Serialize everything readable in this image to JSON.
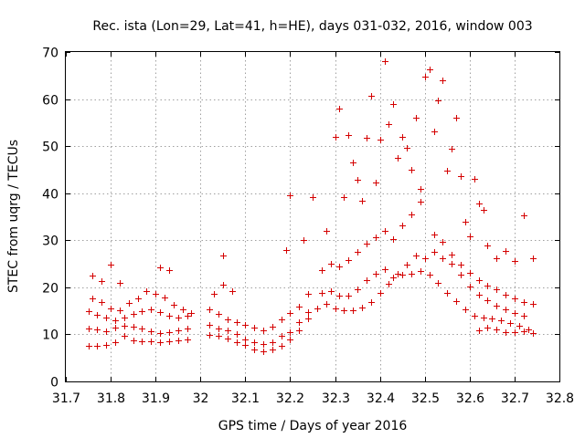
{
  "chart_data": {
    "type": "scatter",
    "title": "Rec. ista (Lon=29, Lat=41, h=HE), days 031-032, 2016, window 003",
    "xlabel": "GPS time / Days of year 2016",
    "ylabel": "STEC from uqrg / TECUs",
    "xlim": [
      31.7,
      32.8
    ],
    "ylim": [
      0,
      70
    ],
    "xticks": [
      "31.7",
      "31.8",
      "31.9",
      "32",
      "32.1",
      "32.2",
      "32.3",
      "32.4",
      "32.5",
      "32.6",
      "32.7",
      "32.8"
    ],
    "yticks": [
      "0",
      "10",
      "20",
      "30",
      "40",
      "50",
      "60",
      "70"
    ],
    "grid": true,
    "marker": "+",
    "color": "#d40000",
    "series": [
      {
        "values": [
          [
            31.75,
            7.5
          ],
          [
            31.77,
            7.6
          ],
          [
            31.79,
            7.8
          ],
          [
            31.81,
            8.4
          ],
          [
            31.83,
            9.6
          ],
          [
            31.85,
            8.8
          ],
          [
            31.87,
            8.5
          ],
          [
            31.89,
            8.5
          ],
          [
            31.91,
            8.4
          ],
          [
            31.93,
            8.6
          ],
          [
            31.95,
            8.8
          ],
          [
            31.97,
            8.9
          ],
          [
            31.75,
            11.2
          ],
          [
            31.77,
            11.0
          ],
          [
            31.79,
            10.6
          ],
          [
            31.81,
            11.4
          ],
          [
            31.83,
            11.9
          ],
          [
            31.85,
            11.6
          ],
          [
            31.87,
            11.2
          ],
          [
            31.89,
            10.7
          ],
          [
            31.91,
            10.3
          ],
          [
            31.93,
            10.4
          ],
          [
            31.95,
            10.8
          ],
          [
            31.97,
            11.3
          ],
          [
            31.75,
            15.0
          ],
          [
            31.77,
            14.2
          ],
          [
            31.79,
            13.6
          ],
          [
            31.81,
            13.0
          ],
          [
            31.83,
            13.6
          ],
          [
            31.85,
            14.3
          ],
          [
            31.87,
            15.0
          ],
          [
            31.89,
            15.3
          ],
          [
            31.91,
            14.8
          ],
          [
            31.93,
            14.0
          ],
          [
            31.95,
            13.6
          ],
          [
            31.97,
            13.9
          ],
          [
            31.76,
            17.7
          ],
          [
            31.78,
            16.8
          ],
          [
            31.8,
            15.6
          ],
          [
            31.82,
            15.1
          ],
          [
            31.84,
            16.6
          ],
          [
            31.86,
            17.6
          ],
          [
            31.88,
            19.2
          ],
          [
            31.9,
            18.7
          ],
          [
            31.92,
            17.9
          ],
          [
            31.94,
            16.3
          ],
          [
            31.96,
            15.3
          ],
          [
            31.98,
            14.6
          ],
          [
            31.76,
            22.5
          ],
          [
            31.78,
            21.3
          ],
          [
            31.8,
            24.8
          ],
          [
            31.82,
            20.9
          ],
          [
            31.91,
            24.3
          ],
          [
            31.93,
            23.6
          ],
          [
            32.02,
            9.8
          ],
          [
            32.04,
            9.6
          ],
          [
            32.06,
            9.1
          ],
          [
            32.08,
            8.3
          ],
          [
            32.1,
            7.8
          ],
          [
            32.12,
            6.7
          ],
          [
            32.14,
            6.4
          ],
          [
            32.16,
            6.7
          ],
          [
            32.18,
            7.6
          ],
          [
            32.2,
            8.9
          ],
          [
            32.22,
            10.8
          ],
          [
            32.24,
            13.4
          ],
          [
            32.02,
            12.1
          ],
          [
            32.04,
            11.3
          ],
          [
            32.06,
            10.9
          ],
          [
            32.08,
            10.1
          ],
          [
            32.1,
            9.0
          ],
          [
            32.12,
            8.3
          ],
          [
            32.14,
            7.9
          ],
          [
            32.16,
            8.4
          ],
          [
            32.18,
            9.6
          ],
          [
            32.2,
            10.4
          ],
          [
            32.22,
            12.6
          ],
          [
            32.24,
            14.8
          ],
          [
            32.02,
            15.4
          ],
          [
            32.04,
            14.4
          ],
          [
            32.06,
            13.2
          ],
          [
            32.08,
            12.6
          ],
          [
            32.1,
            12.0
          ],
          [
            32.12,
            11.4
          ],
          [
            32.14,
            10.9
          ],
          [
            32.16,
            11.6
          ],
          [
            32.18,
            13.1
          ],
          [
            32.2,
            14.6
          ],
          [
            32.22,
            15.9
          ],
          [
            32.24,
            18.6
          ],
          [
            32.03,
            18.7
          ],
          [
            32.05,
            20.6
          ],
          [
            32.07,
            19.2
          ],
          [
            32.05,
            26.8
          ],
          [
            32.19,
            27.9
          ],
          [
            32.2,
            39.6
          ],
          [
            32.23,
            30.1
          ],
          [
            32.25,
            39.1
          ],
          [
            32.26,
            15.5
          ],
          [
            32.28,
            16.5
          ],
          [
            32.3,
            15.5
          ],
          [
            32.32,
            15.2
          ],
          [
            32.34,
            15.1
          ],
          [
            32.36,
            15.7
          ],
          [
            32.38,
            16.9
          ],
          [
            32.4,
            18.9
          ],
          [
            32.42,
            20.8
          ],
          [
            32.44,
            22.9
          ],
          [
            32.46,
            24.9
          ],
          [
            32.48,
            26.8
          ],
          [
            32.27,
            18.9
          ],
          [
            32.29,
            19.1
          ],
          [
            32.31,
            18.2
          ],
          [
            32.33,
            18.3
          ],
          [
            32.35,
            19.6
          ],
          [
            32.37,
            21.6
          ],
          [
            32.39,
            22.8
          ],
          [
            32.41,
            23.9
          ],
          [
            32.43,
            22.1
          ],
          [
            32.45,
            22.7
          ],
          [
            32.47,
            22.9
          ],
          [
            32.49,
            23.4
          ],
          [
            32.27,
            23.7
          ],
          [
            32.29,
            25.1
          ],
          [
            32.31,
            24.5
          ],
          [
            32.33,
            25.8
          ],
          [
            32.35,
            27.5
          ],
          [
            32.37,
            29.3
          ],
          [
            32.39,
            30.6
          ],
          [
            32.41,
            31.9
          ],
          [
            32.43,
            30.2
          ],
          [
            32.45,
            33.2
          ],
          [
            32.47,
            35.4
          ],
          [
            32.49,
            38.2
          ],
          [
            32.28,
            31.9
          ],
          [
            32.3,
            51.9
          ],
          [
            32.31,
            57.9
          ],
          [
            32.32,
            39.1
          ],
          [
            32.33,
            52.3
          ],
          [
            32.34,
            46.6
          ],
          [
            32.35,
            42.9
          ],
          [
            32.36,
            38.3
          ],
          [
            32.37,
            51.8
          ],
          [
            32.38,
            60.6
          ],
          [
            32.39,
            42.3
          ],
          [
            32.4,
            51.3
          ],
          [
            32.41,
            68.1
          ],
          [
            32.42,
            54.7
          ],
          [
            32.43,
            58.9
          ],
          [
            32.44,
            47.6
          ],
          [
            32.45,
            52.0
          ],
          [
            32.46,
            49.6
          ],
          [
            32.47,
            44.9
          ],
          [
            32.48,
            56.1
          ],
          [
            32.49,
            41.0
          ],
          [
            32.5,
            64.7
          ],
          [
            32.51,
            66.4
          ],
          [
            32.52,
            53.2
          ],
          [
            32.53,
            59.8
          ],
          [
            32.54,
            64.0
          ],
          [
            32.55,
            44.7
          ],
          [
            32.56,
            49.4
          ],
          [
            32.57,
            56.1
          ],
          [
            32.58,
            43.6
          ],
          [
            32.59,
            34.0
          ],
          [
            32.6,
            30.9
          ],
          [
            32.61,
            43.1
          ],
          [
            32.62,
            37.8
          ],
          [
            32.63,
            36.5
          ],
          [
            32.64,
            28.8
          ],
          [
            32.5,
            26.1
          ],
          [
            32.52,
            27.6
          ],
          [
            32.54,
            26.1
          ],
          [
            32.56,
            25.0
          ],
          [
            32.58,
            22.6
          ],
          [
            32.6,
            20.2
          ],
          [
            32.62,
            18.4
          ],
          [
            32.64,
            17.2
          ],
          [
            32.66,
            16.0
          ],
          [
            32.68,
            15.3
          ],
          [
            32.7,
            14.6
          ],
          [
            32.72,
            14.0
          ],
          [
            32.51,
            22.6
          ],
          [
            32.53,
            21.0
          ],
          [
            32.55,
            18.9
          ],
          [
            32.57,
            17.0
          ],
          [
            32.59,
            15.3
          ],
          [
            32.61,
            14.0
          ],
          [
            32.63,
            13.5
          ],
          [
            32.65,
            13.4
          ],
          [
            32.67,
            12.9
          ],
          [
            32.69,
            12.4
          ],
          [
            32.71,
            11.8
          ],
          [
            32.73,
            11.0
          ],
          [
            32.52,
            31.2
          ],
          [
            32.54,
            29.6
          ],
          [
            32.56,
            27.0
          ],
          [
            32.58,
            24.9
          ],
          [
            32.6,
            23.0
          ],
          [
            32.62,
            21.6
          ],
          [
            32.64,
            20.3
          ],
          [
            32.66,
            19.5
          ],
          [
            32.68,
            18.4
          ],
          [
            32.7,
            17.7
          ],
          [
            32.72,
            16.8
          ],
          [
            32.74,
            16.4
          ],
          [
            32.62,
            10.8
          ],
          [
            32.64,
            11.4
          ],
          [
            32.66,
            11.0
          ],
          [
            32.68,
            10.5
          ],
          [
            32.7,
            10.4
          ],
          [
            32.72,
            10.6
          ],
          [
            32.74,
            10.3
          ],
          [
            32.66,
            26.1
          ],
          [
            32.68,
            27.8
          ],
          [
            32.7,
            25.6
          ],
          [
            32.72,
            35.2
          ],
          [
            32.74,
            26.2
          ]
        ]
      }
    ]
  }
}
